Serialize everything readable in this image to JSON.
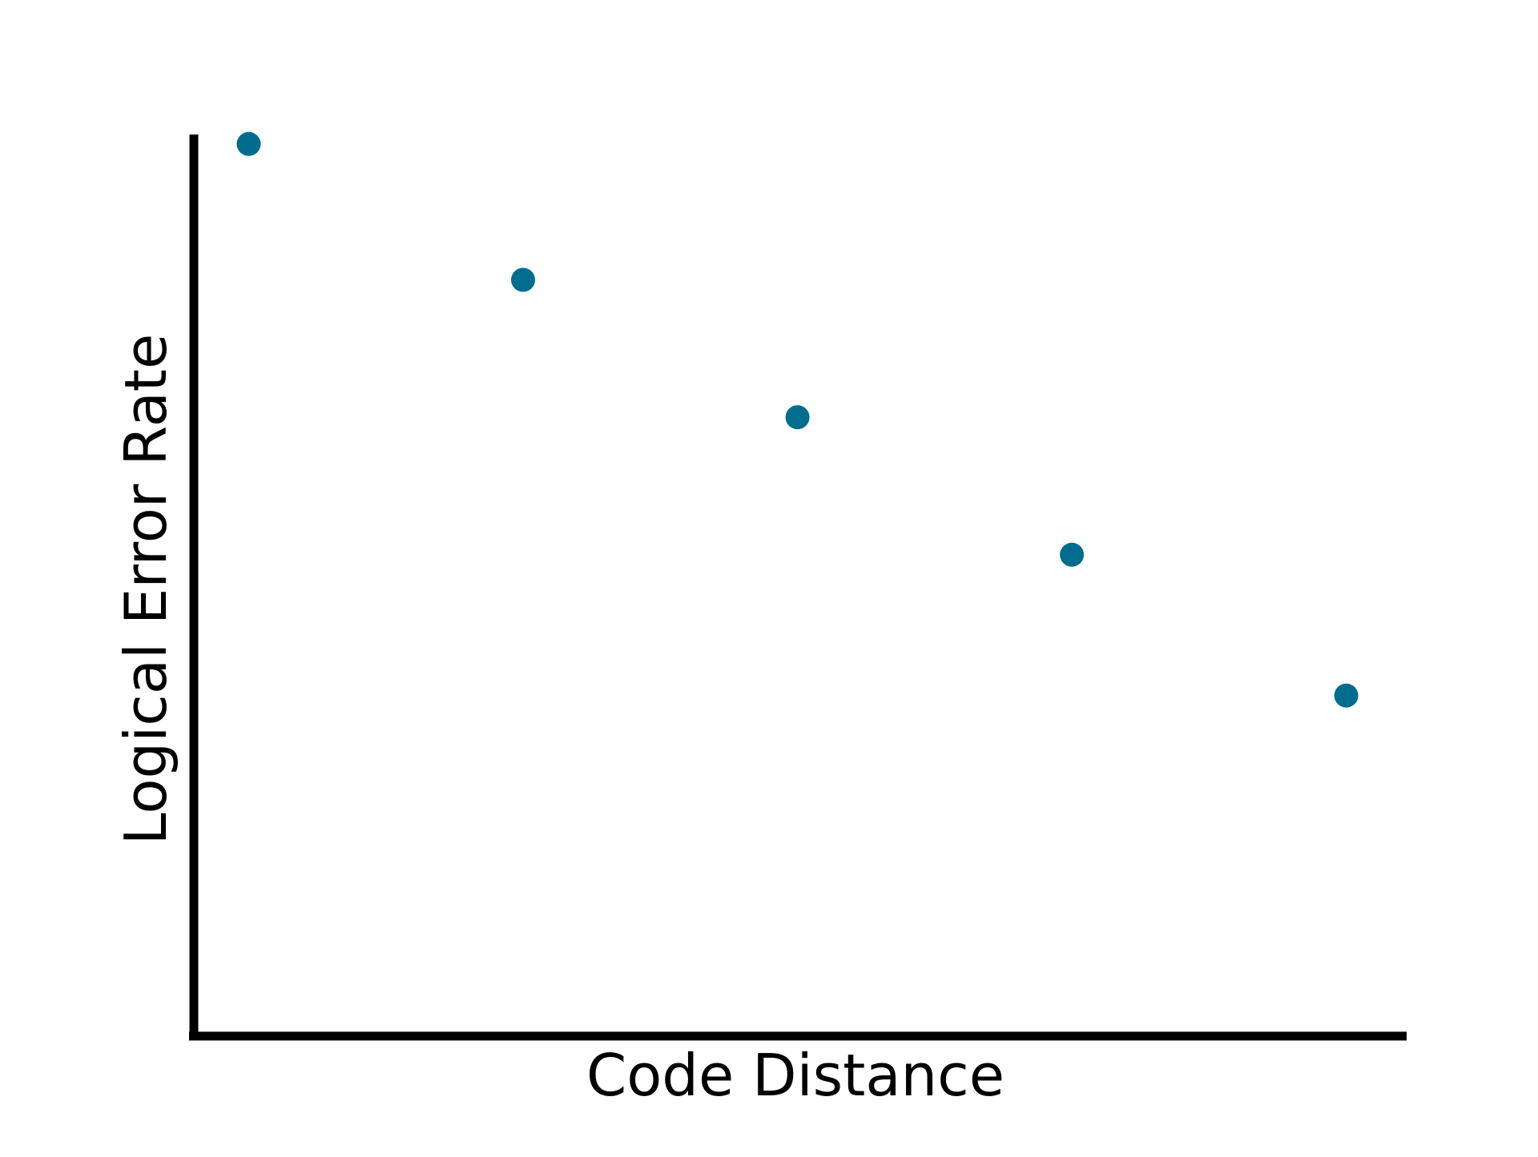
{
  "chart_data": {
    "type": "scatter",
    "title": "",
    "xlabel": "Code Distance",
    "ylabel": "Logical Error Rate",
    "x": [
      1,
      2,
      3,
      4,
      5
    ],
    "y": [
      100,
      49.6,
      24.4,
      12.0,
      5.8
    ],
    "xlim": [
      0.8,
      5.22
    ],
    "ylim": [
      1,
      105
    ],
    "xticks": [],
    "yticks": [],
    "grid": false,
    "legend": "none",
    "colors": {
      "marker": "#006d8f",
      "axis": "#000000"
    }
  }
}
